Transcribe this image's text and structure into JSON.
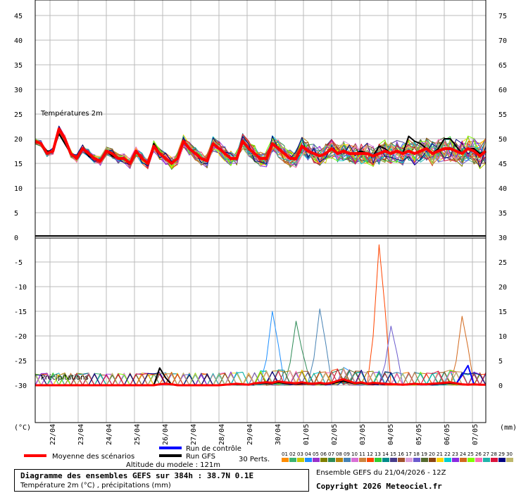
{
  "chart_data": {
    "type": "line",
    "x": [
      "22/04",
      "23/04",
      "24/04",
      "25/04",
      "26/04",
      "27/04",
      "28/04",
      "29/04",
      "30/04",
      "01/05",
      "02/05",
      "03/05",
      "04/05",
      "05/05",
      "06/05",
      "07/05"
    ],
    "temperature_panel": {
      "label": "Températures 2m",
      "y_left_ticks": [
        5,
        10,
        15,
        20,
        25,
        30,
        35,
        40,
        45
      ],
      "y_right_ticks": [
        35,
        40,
        45,
        50,
        55,
        60,
        65,
        70,
        75
      ],
      "ylim": [
        0,
        48
      ],
      "mean": [
        19.5,
        19,
        17,
        17.5,
        22,
        20,
        17,
        16,
        18,
        17,
        16,
        15.5,
        17.5,
        17,
        16,
        16,
        15,
        17.5,
        16,
        15,
        18.5,
        17,
        16,
        15,
        16,
        19.5,
        18,
        17,
        16,
        15.5,
        19,
        18,
        17,
        16,
        16,
        19.5,
        18,
        17,
        16,
        16,
        19,
        18,
        17,
        16,
        16,
        18.5,
        17.5,
        17,
        16.5,
        17,
        18,
        17,
        17.5,
        17,
        17,
        17,
        17,
        16.5,
        17,
        17.5,
        17,
        17.5,
        17,
        17.5,
        17,
        17.5,
        18,
        17,
        17.5,
        18,
        18,
        17.5,
        17,
        18,
        17.5,
        16.5,
        17.5
      ],
      "control": [
        19.5,
        19,
        17,
        17.5,
        22,
        20,
        17,
        16,
        18,
        17,
        16,
        15.5,
        17.5,
        17,
        16,
        16,
        15,
        17.5,
        16,
        15,
        18.5,
        17,
        16,
        15,
        16,
        19.5,
        18,
        17,
        16,
        15.5,
        19,
        18,
        17,
        16,
        16,
        19.5,
        18,
        17,
        16,
        16,
        19,
        18,
        17,
        16,
        16,
        18.5,
        17.5,
        17,
        16.5,
        17,
        18,
        17,
        17.5,
        17,
        17,
        17,
        17,
        16.5,
        17,
        17.5,
        17,
        17.5,
        17,
        17.5,
        17,
        17.5,
        18,
        17,
        17.5,
        18,
        18,
        17.5,
        17,
        18,
        17.5,
        16.5,
        17.5
      ],
      "gfs": [
        19.5,
        19,
        17.5,
        17.5,
        21,
        19,
        17,
        16,
        18,
        16.5,
        16,
        15.5,
        17.5,
        16.5,
        16,
        16,
        15,
        17.5,
        16,
        15,
        19,
        17,
        16,
        15,
        16,
        19.5,
        18,
        17,
        16,
        15.5,
        19,
        18,
        17,
        16,
        16,
        19.5,
        18,
        17,
        16,
        16,
        19,
        18,
        17,
        16,
        16,
        18.5,
        17.5,
        17,
        16.5,
        17,
        18,
        17,
        17.5,
        17,
        17,
        17.5,
        17,
        16.5,
        18.5,
        18,
        17,
        17.5,
        17,
        20.5,
        19.5,
        19,
        18,
        17,
        18,
        20,
        20,
        18.5,
        17,
        18,
        18,
        17,
        17.5
      ]
    },
    "precip_panel": {
      "label": "Précipitations",
      "y_left_ticks": [
        0,
        -5,
        -10,
        -15,
        -20,
        -25,
        -30
      ],
      "y_right_ticks": [
        30,
        25,
        20,
        15,
        10,
        5,
        0
      ],
      "ylim_mm": [
        0,
        30
      ],
      "mean": [
        0,
        0,
        0,
        0,
        0,
        0,
        0,
        0,
        0,
        0,
        0,
        0,
        0,
        0,
        0,
        0,
        0,
        0,
        0,
        0,
        0,
        0.2,
        0.3,
        0.2,
        0,
        0,
        0,
        0,
        0,
        0,
        0,
        0,
        0.1,
        0.2,
        0.3,
        0.2,
        0.1,
        0.4,
        0.5,
        0.6,
        0.5,
        0.8,
        0.6,
        0.5,
        0.4,
        0.6,
        0.4,
        0.3,
        0.5,
        0.3,
        0.5,
        0.9,
        1.2,
        0.8,
        0.4,
        0.6,
        0.3,
        0.5,
        0.4,
        0.3,
        0.2,
        0.2,
        0.1,
        0.2,
        0.3,
        0.2,
        0.2,
        0.3,
        0.4,
        0.5,
        0.6,
        0.4,
        0.2,
        0.1,
        0.2,
        0.1,
        0.1
      ],
      "peak_members": [
        {
          "name": "04",
          "at": 40,
          "value": 15
        },
        {
          "name": "07",
          "at": 44,
          "value": 13
        },
        {
          "name": "09",
          "at": 48,
          "value": 15.5
        },
        {
          "name": "12",
          "at": 58,
          "value": 28.5
        },
        {
          "name": "18",
          "at": 60,
          "value": 12
        },
        {
          "name": "24",
          "at": 72,
          "value": 14
        }
      ]
    },
    "x_unit_left": "(°C)",
    "x_unit_right": "(mm)"
  },
  "legend": {
    "mean_label": "Moyenne des scénarios",
    "control_label": "Run de contrôle",
    "gfs_label": "Run GFS",
    "perts_label": "30 Perts.",
    "mean_color": "#ff0000",
    "control_color": "#0000ff",
    "gfs_color": "#000000",
    "member_numbers": [
      "01",
      "02",
      "03",
      "04",
      "05",
      "06",
      "07",
      "08",
      "09",
      "10",
      "11",
      "12",
      "13",
      "14",
      "15",
      "16",
      "17",
      "18",
      "19",
      "20",
      "21",
      "22",
      "23",
      "24",
      "25",
      "26",
      "27",
      "28",
      "29",
      "30"
    ],
    "member_colors": [
      "#ff8c00",
      "#3cb371",
      "#c8c800",
      "#1e90ff",
      "#9932cc",
      "#808000",
      "#2e8b57",
      "#b8860b",
      "#4682b4",
      "#da70d6",
      "#cd853f",
      "#ff4500",
      "#32cd32",
      "#008b8b",
      "#483d8b",
      "#a0522d",
      "#dda0dd",
      "#6a5acd",
      "#556b2f",
      "#8b4513",
      "#ffd700",
      "#00ced1",
      "#8a2be2",
      "#d2691e",
      "#7fff00",
      "#ff69b4",
      "#20b2aa",
      "#dc143c",
      "#000080",
      "#bdb76b"
    ]
  },
  "altitude": "Altitude du modele : 121m",
  "title_line1": "Diagramme des ensembles GEFS sur 384h : 38.7N 0.1E",
  "title_line2": "Température 2m (°C) , précipitations (mm)",
  "ensemble_info": "Ensemble GEFS du 21/04/2026 - 12Z",
  "copyright": "Copyright 2026 Meteociel.fr"
}
